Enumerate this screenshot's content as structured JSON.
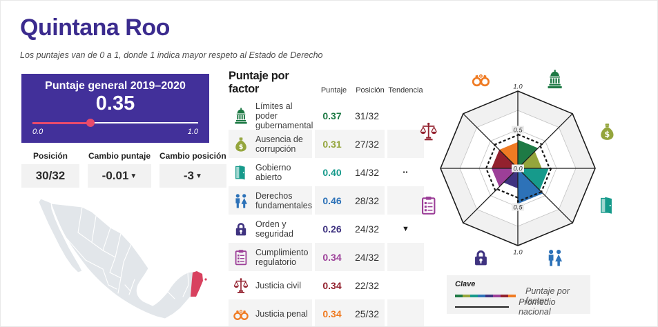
{
  "colors": {
    "brand-purple": "#3b2b8e",
    "card-purple": "#42309a",
    "slider-pink": "#e84a6b",
    "map-land": "#e2e6ea",
    "map-border": "#ffffff",
    "map-highlight": "#d8415f",
    "row-alt-bg": "#f4f4f4",
    "grid-gray": "#c7c7c7",
    "axis-black": "#1c1c1c"
  },
  "header": {
    "title": "Quintana Roo",
    "subtitle": "Los puntajes van de 0 a 1, donde 1 indica mayor respeto al Estado de Derecho"
  },
  "score_card": {
    "title": "Puntaje general 2019–2020",
    "value": "0.35",
    "fraction": 0.35,
    "min_label": "0.0",
    "max_label": "1.0"
  },
  "stats": [
    {
      "label": "Posición",
      "value": "30/32",
      "trend": ""
    },
    {
      "label": "Cambio puntaje",
      "value": "-0.01",
      "trend": "down"
    },
    {
      "label": "Cambio posición",
      "value": "-3",
      "trend": "down"
    }
  ],
  "factors": {
    "title": "Puntaje por factor",
    "col_score": "Puntaje",
    "col_rank": "Posición",
    "col_trend": "Tendencia",
    "rows": [
      {
        "icon": "capitol-icon",
        "color": "#1e7a45",
        "label": "Límites al poder gubernamental",
        "score": "0.37",
        "rank": "31/32",
        "trend": ""
      },
      {
        "icon": "money-bag-icon",
        "color": "#94a53c",
        "label": "Ausencia de corrupción",
        "score": "0.31",
        "rank": "27/32",
        "trend": ""
      },
      {
        "icon": "door-icon",
        "color": "#169a8b",
        "label": "Gobierno abierto",
        "score": "0.40",
        "rank": "14/32",
        "trend": "flat"
      },
      {
        "icon": "people-icon",
        "color": "#2d72b8",
        "label": "Derechos fundamentales",
        "score": "0.46",
        "rank": "28/32",
        "trend": ""
      },
      {
        "icon": "lock-icon",
        "color": "#3f3380",
        "label": "Orden y seguridad",
        "score": "0.26",
        "rank": "24/32",
        "trend": "down"
      },
      {
        "icon": "clipboard-icon",
        "color": "#9c3f98",
        "label": "Cumplimiento regulatorio",
        "score": "0.34",
        "rank": "24/32",
        "trend": ""
      },
      {
        "icon": "scales-icon",
        "color": "#93212e",
        "label": "Justicia civil",
        "score": "0.34",
        "rank": "22/32",
        "trend": ""
      },
      {
        "icon": "handcuffs-icon",
        "color": "#ef7b23",
        "label": "Justicia penal",
        "score": "0.34",
        "rank": "25/32",
        "trend": ""
      }
    ]
  },
  "chart_data": {
    "type": "radar",
    "title": "Puntaje por factor (radar)",
    "categories": [
      "Límites al poder gubernamental",
      "Ausencia de corrupción",
      "Gobierno abierto",
      "Derechos fundamentales",
      "Orden y seguridad",
      "Cumplimiento regulatorio",
      "Justicia civil",
      "Justicia penal"
    ],
    "series": [
      {
        "name": "Puntaje por factor",
        "values": [
          0.37,
          0.31,
          0.4,
          0.46,
          0.26,
          0.34,
          0.34,
          0.34
        ],
        "colors": [
          "#1e7a45",
          "#94a53c",
          "#169a8b",
          "#2d72b8",
          "#3f3380",
          "#9c3f98",
          "#93212e",
          "#ef7b23"
        ]
      },
      {
        "name": "Promedio nacional",
        "values": [
          0.44,
          0.41,
          0.43,
          0.43,
          0.38,
          0.41,
          0.41,
          0.43
        ],
        "style": "dashed",
        "color": "#141414"
      }
    ],
    "icons": [
      "capitol-icon",
      "money-bag-icon",
      "door-icon",
      "people-icon",
      "lock-icon",
      "clipboard-icon",
      "scales-icon",
      "handcuffs-icon"
    ],
    "rlim": [
      0,
      1
    ],
    "tick_labels": {
      "outer_top": "1.0",
      "mid_top": "0.5",
      "center": "0.0",
      "mid_bottom": "0.5",
      "outer_bottom": "1.0"
    },
    "gridlines": [
      0.25,
      0.5,
      0.75,
      1.0
    ],
    "legend_position": "bottom-right"
  },
  "legend": {
    "title": "Clave",
    "factor_label": "Puntaje por factor",
    "national_label": "Promedio nacional"
  },
  "map": {
    "country": "México",
    "highlighted_state": "Quintana Roo"
  }
}
